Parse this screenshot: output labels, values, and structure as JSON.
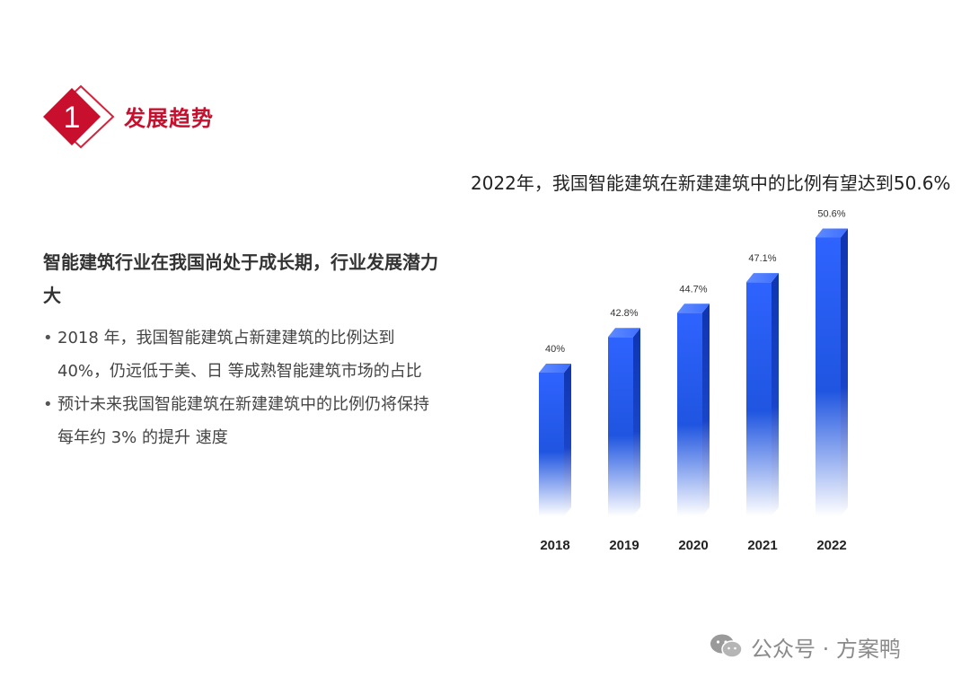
{
  "header": {
    "badge_number": "1",
    "section_title": "发展趋势",
    "accent_color": "#c8102e"
  },
  "left_panel": {
    "heading": "智能建筑行业在我国尚处于成长期，行业发展潜力大",
    "bullets": [
      "2018 年，我国智能建筑占新建建筑的比例达到 40%，仍远低于美、日 等成熟智能建筑市场的占比",
      "预计未来我国智能建筑在新建建筑中的比例仍将保持每年约 3% 的提升 速度"
    ]
  },
  "chart_data": {
    "type": "bar",
    "title": "2022年，我国智能建筑在新建建筑中的比例有望达到50.6%",
    "categories": [
      "2018",
      "2019",
      "2020",
      "2021",
      "2022"
    ],
    "values": [
      40,
      42.8,
      44.7,
      47.1,
      50.6
    ],
    "value_labels": [
      "40%",
      "42.8%",
      "44.7%",
      "47.1%",
      "50.6%"
    ],
    "unit": "%",
    "bar_color": "#1f55e0",
    "grid": false,
    "legend": "none"
  },
  "watermark": {
    "icon": "wechat-icon",
    "text": "公众号 · 方案鸭"
  }
}
